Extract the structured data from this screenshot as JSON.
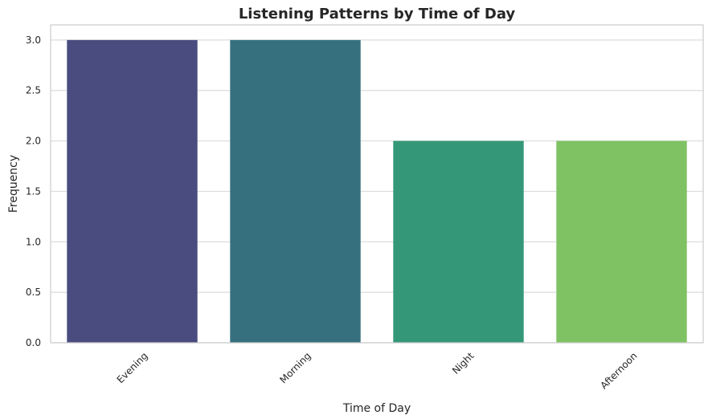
{
  "chart_data": {
    "type": "bar",
    "title": "Listening Patterns by Time of Day",
    "xlabel": "Time of Day",
    "ylabel": "Frequency",
    "categories": [
      "Evening",
      "Morning",
      "Night",
      "Afternoon"
    ],
    "values": [
      3,
      3,
      2,
      2
    ],
    "colors": [
      "#4a4c7f",
      "#36707e",
      "#349878",
      "#7fc263"
    ],
    "ylim": [
      0,
      3.15
    ],
    "yticks": [
      "0.0",
      "0.5",
      "1.0",
      "1.5",
      "2.0",
      "2.5",
      "3.0"
    ],
    "grid": true,
    "xtick_rotation_deg": 45
  }
}
